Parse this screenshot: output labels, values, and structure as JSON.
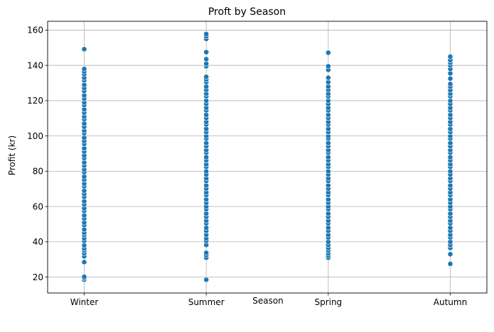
{
  "chart_data": {
    "type": "scatter",
    "title": "Proft by Season",
    "xlabel": "Season",
    "ylabel": "Profit (kr)",
    "categories": [
      "Winter",
      "Summer",
      "Spring",
      "Autumn"
    ],
    "ylim": [
      11,
      165
    ],
    "yticks": [
      20,
      40,
      60,
      80,
      100,
      120,
      140,
      160
    ],
    "grid": true,
    "marker_color": "#1f77b4",
    "series": [
      {
        "category": "Winter",
        "values": [
          18.5,
          19.5,
          20.2,
          28.5,
          31.8,
          33.5,
          35.0,
          36.2,
          38.0,
          40.5,
          42.0,
          43.8,
          45.2,
          47.0,
          49.5,
          51.0,
          53.2,
          55.0,
          57.5,
          59.0,
          61.2,
          63.0,
          65.5,
          67.2,
          69.0,
          71.5,
          73.0,
          75.2,
          77.0,
          79.5,
          81.0,
          83.2,
          85.0,
          87.5,
          89.0,
          91.2,
          93.0,
          95.5,
          97.2,
          99.0,
          101.5,
          103.0,
          105.2,
          107.0,
          109.5,
          111.0,
          113.2,
          115.0,
          117.5,
          119.0,
          121.2,
          123.0,
          125.5,
          127.2,
          129.0,
          131.5,
          133.0,
          135.0,
          136.5,
          138.0,
          149.2
        ]
      },
      {
        "category": "Summer",
        "values": [
          18.5,
          31.0,
          32.5,
          33.8,
          38.2,
          40.5,
          42.0,
          44.0,
          46.2,
          48.0,
          50.5,
          52.0,
          54.2,
          56.0,
          58.5,
          60.0,
          62.2,
          64.0,
          66.5,
          68.0,
          70.2,
          72.0,
          74.5,
          76.0,
          78.2,
          80.0,
          82.5,
          84.0,
          86.2,
          88.0,
          90.5,
          92.0,
          94.2,
          96.0,
          98.5,
          100.0,
          102.2,
          104.0,
          106.5,
          108.0,
          110.2,
          112.0,
          114.5,
          116.0,
          118.2,
          120.0,
          122.5,
          124.0,
          126.2,
          128.0,
          130.5,
          132.0,
          133.5,
          139.5,
          141.0,
          143.5,
          147.5,
          155.0,
          156.5,
          157.8
        ]
      },
      {
        "category": "Spring",
        "values": [
          31.0,
          32.2,
          33.5,
          35.0,
          36.5,
          38.2,
          40.0,
          42.5,
          44.0,
          46.2,
          48.0,
          50.5,
          52.0,
          54.2,
          56.0,
          58.5,
          60.0,
          62.2,
          64.0,
          66.5,
          68.0,
          70.2,
          72.0,
          74.5,
          76.0,
          78.2,
          80.0,
          82.5,
          84.0,
          86.2,
          88.0,
          90.5,
          92.0,
          94.2,
          96.0,
          98.5,
          100.0,
          102.2,
          104.0,
          106.5,
          108.0,
          110.2,
          112.0,
          114.5,
          116.0,
          118.2,
          120.0,
          122.5,
          124.0,
          126.2,
          128.0,
          130.5,
          133.0,
          137.5,
          139.5,
          147.2
        ]
      },
      {
        "category": "Autumn",
        "values": [
          27.5,
          33.0,
          36.5,
          38.2,
          40.0,
          42.5,
          44.0,
          46.2,
          48.0,
          50.5,
          52.0,
          54.2,
          56.0,
          58.5,
          60.0,
          62.2,
          64.0,
          66.5,
          68.0,
          70.2,
          72.0,
          74.5,
          76.0,
          78.2,
          80.0,
          82.5,
          84.0,
          86.2,
          88.0,
          90.5,
          92.0,
          94.2,
          96.0,
          98.5,
          100.0,
          102.2,
          104.0,
          106.5,
          108.0,
          110.2,
          112.0,
          114.5,
          116.0,
          118.2,
          120.0,
          122.5,
          124.0,
          126.0,
          128.0,
          129.5,
          132.5,
          135.5,
          138.0,
          140.0,
          141.5,
          143.0,
          145.0
        ]
      }
    ]
  }
}
